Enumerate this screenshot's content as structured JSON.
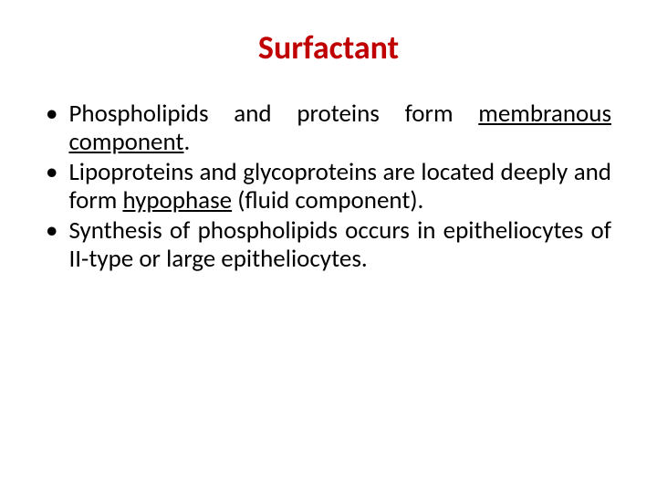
{
  "slide": {
    "title": "Surfactant",
    "title_color": "#c00000",
    "title_fontsize": 36,
    "body_fontsize": 27,
    "body_color": "#000000",
    "background_color": "#ffffff",
    "bullets": [
      {
        "parts": [
          {
            "text": "Phospholipids and proteins form ",
            "underline": false
          },
          {
            "text": "membranous component",
            "underline": true
          },
          {
            "text": ".",
            "underline": false
          }
        ]
      },
      {
        "parts": [
          {
            "text": "Lipoproteins and glycoproteins are located deeply and form ",
            "underline": false
          },
          {
            "text": "hypophase",
            "underline": true
          },
          {
            "text": " (fluid component).",
            "underline": false
          }
        ]
      },
      {
        "parts": [
          {
            "text": "Synthesis of phospholipids occurs in epitheliocytes of II-type or large epitheliocytes.",
            "underline": false
          }
        ]
      }
    ]
  }
}
